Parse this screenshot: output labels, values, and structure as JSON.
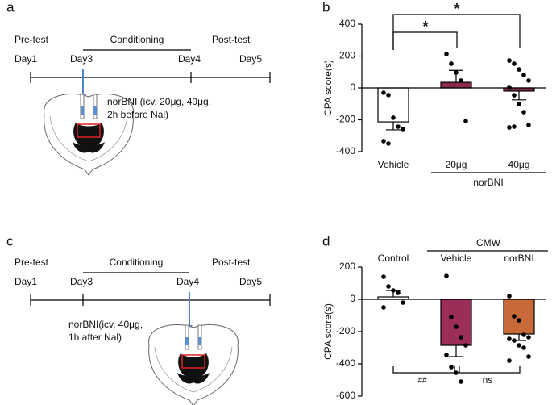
{
  "panel_labels": [
    "a",
    "b",
    "c",
    "d"
  ],
  "timelines": [
    {
      "pre": "Pre-test",
      "conditioning": "Conditioning",
      "post": "Post-test",
      "days": [
        "Day1",
        "Day3",
        "Day4",
        "Day5"
      ],
      "note": [
        "norBNI (icv, 20μg, 40μg,",
        "2h before Nal)"
      ]
    },
    {
      "pre": "Pre-test",
      "conditioning": "Conditioning",
      "post": "Post-test",
      "days": [
        "Day1",
        "Day3",
        "Day4",
        "Day5"
      ],
      "note": [
        "norBNI(icv, 40μg,",
        "1h after Nal)"
      ]
    }
  ],
  "chart_data": [
    {
      "type": "bar",
      "y_label": "CPA score(s)",
      "categories": [
        "Vehicle",
        "20μg",
        "40μg"
      ],
      "values": [
        -213,
        35,
        -20
      ],
      "errors": [
        50,
        75,
        55
      ],
      "colors": [
        "#ffffff",
        "#8b2a4e",
        "#8b2a4e"
      ],
      "points": [
        [
          -30,
          -45,
          -187,
          -243,
          -258,
          -334,
          -349
        ],
        [
          213,
          152,
          96,
          46,
          -208
        ],
        [
          172,
          152,
          116,
          81,
          46,
          5,
          -46,
          -101,
          -152,
          -233,
          -248,
          -243
        ]
      ],
      "ylim": [
        -400,
        400
      ],
      "yticks": [
        -400,
        -200,
        0,
        200,
        400
      ],
      "group_label": "norBNI",
      "annotations": [
        "*",
        "*"
      ]
    },
    {
      "type": "bar",
      "y_label": "CPA score(s)",
      "categories": [
        "Control",
        "Vehicle",
        "norBNI"
      ],
      "values": [
        15,
        -285,
        -215
      ],
      "errors": [
        40,
        70,
        40
      ],
      "colors": [
        "#ffffff",
        "#9b2d58",
        "#c8693a"
      ],
      "points": [
        [
          140,
          80,
          55,
          40,
          -20,
          -50
        ],
        [
          145,
          -110,
          -170,
          -235,
          -285,
          -345,
          -420,
          -455,
          -510
        ],
        [
          20,
          -105,
          -130,
          -220,
          -235,
          -245,
          -255,
          -285,
          -300,
          -355,
          -380
        ]
      ],
      "ylim": [
        -600,
        200
      ],
      "yticks": [
        -600,
        -400,
        -200,
        0,
        200
      ],
      "group_label": "CMW",
      "annotations": [
        "##",
        "ns"
      ]
    }
  ]
}
